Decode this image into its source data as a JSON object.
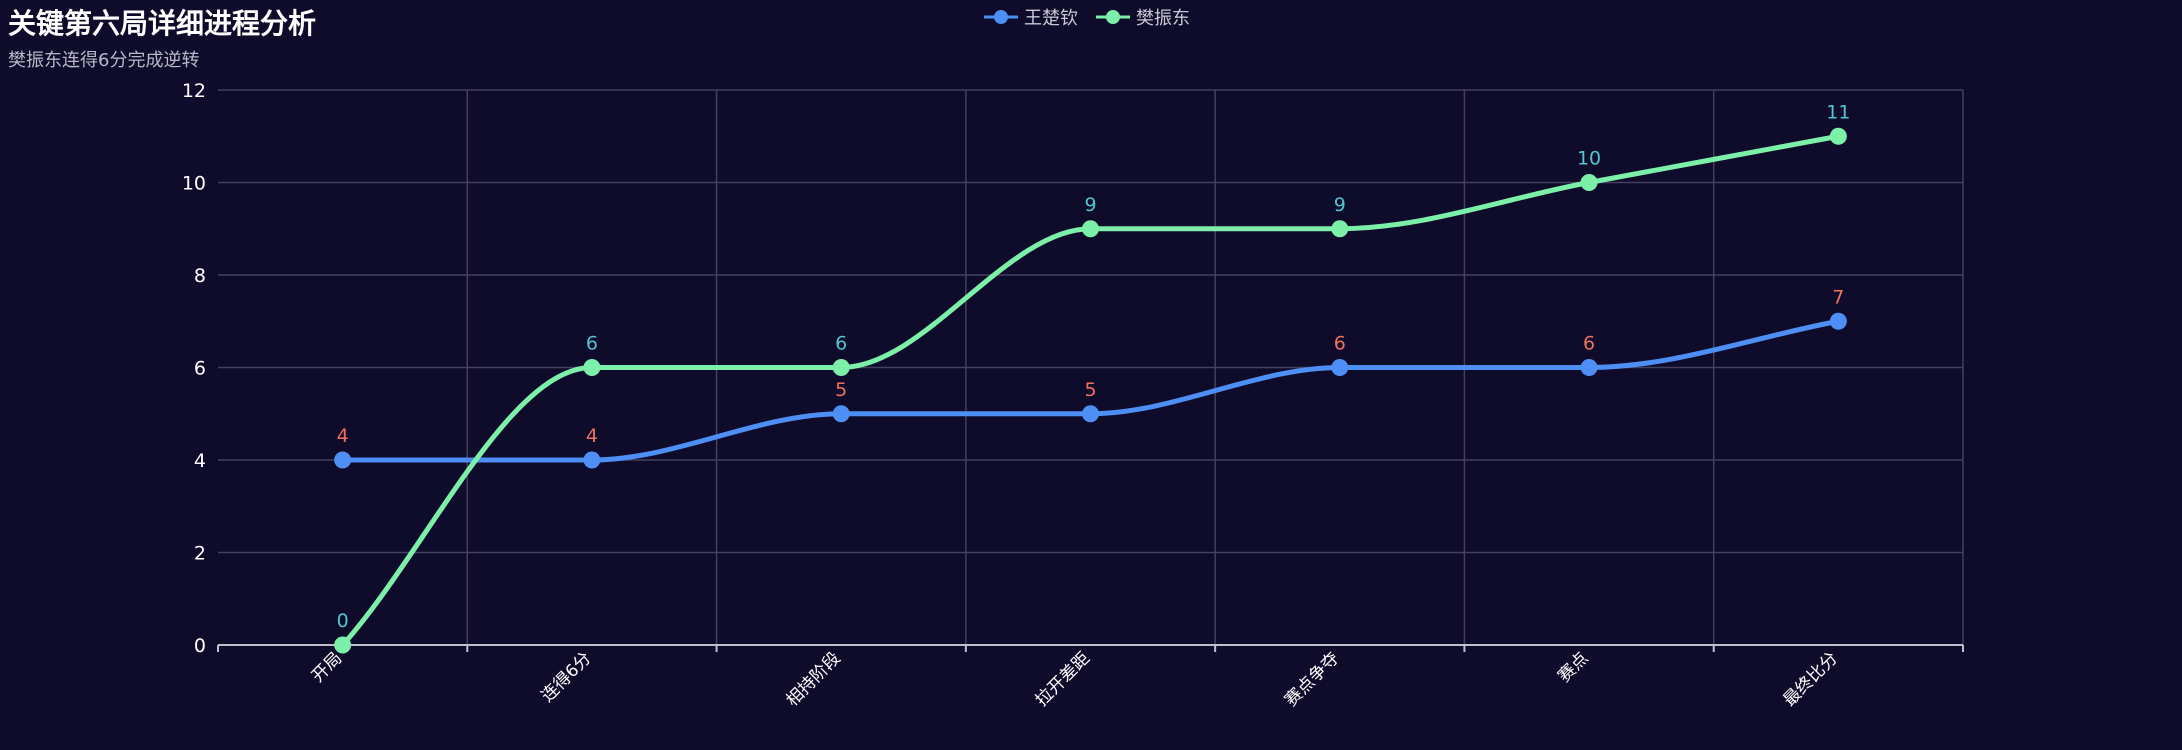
{
  "chart_data": {
    "type": "line",
    "title": "关键第六局详细进程分析",
    "subtitle": "樊振东连得6分完成逆转",
    "categories": [
      "开局",
      "连得6分",
      "相持阶段",
      "拉开差距",
      "赛点争夺",
      "赛点",
      "最终比分"
    ],
    "series": [
      {
        "name": "王楚钦",
        "values": [
          4,
          4,
          5,
          5,
          6,
          6,
          7
        ],
        "color": "#4e8ff5",
        "label_color": "#f07060"
      },
      {
        "name": "樊振东",
        "values": [
          0,
          6,
          6,
          9,
          9,
          10,
          11
        ],
        "color": "#7cf0a8",
        "label_color": "#4fc6d0"
      }
    ],
    "ylim": [
      0,
      12
    ],
    "yticks": [
      0,
      2,
      4,
      6,
      8,
      10,
      12
    ],
    "grid": true,
    "legend_position": "top-center",
    "colors": {
      "background": "#0f0b2a",
      "grid": "#44415e",
      "axis": "#c0c0cc",
      "text": "#ffffff"
    }
  }
}
